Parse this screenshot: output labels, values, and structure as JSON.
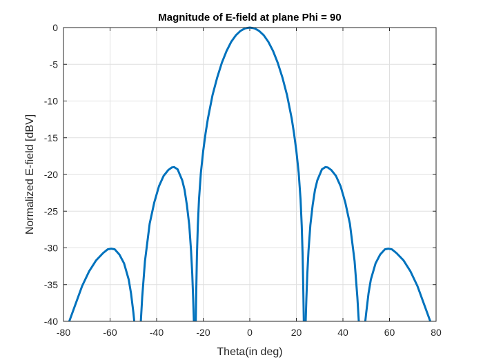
{
  "chart_data": {
    "type": "line",
    "title": "Magnitude of E-field at plane Phi = 90",
    "xlabel": "Theta(in deg)",
    "ylabel": "Normalized E-field [dBV]",
    "xlim": [
      -80,
      80
    ],
    "ylim": [
      -40,
      0
    ],
    "xticks": [
      -80,
      -60,
      -40,
      -20,
      0,
      20,
      40,
      60,
      80
    ],
    "yticks": [
      0,
      -5,
      -10,
      -15,
      -20,
      -25,
      -30,
      -35,
      -40
    ],
    "xtick_labels": [
      "-80",
      "-60",
      "-40",
      "-20",
      "0",
      "20",
      "40",
      "60",
      "80"
    ],
    "ytick_labels": [
      "0",
      "-5",
      "-10",
      "-15",
      "-20",
      "-25",
      "-30",
      "-35",
      "-40"
    ],
    "grid": true,
    "line_color": "#0072BD",
    "series": [
      {
        "x": [
          -77.5,
          -75,
          -72,
          -69,
          -66,
          -63,
          -61,
          -59.5,
          -58,
          -56,
          -54,
          -52,
          -51,
          -50,
          -49.6
        ],
        "y": [
          -40,
          -37.8,
          -35.2,
          -33.2,
          -31.7,
          -30.7,
          -30.2,
          -30.1,
          -30.2,
          -30.9,
          -32.1,
          -34.3,
          -36.2,
          -38.8,
          -40
        ]
      },
      {
        "x": [
          -46.8,
          -46.2,
          -45,
          -43,
          -41,
          -39,
          -37,
          -35,
          -33.5,
          -32.5,
          -31,
          -29,
          -28,
          -27,
          -26,
          -25.2,
          -24.7,
          -24.3,
          -24
        ],
        "y": [
          -40,
          -36.7,
          -31.8,
          -26.7,
          -23.8,
          -21.6,
          -20.2,
          -19.4,
          -19.05,
          -19.0,
          -19.3,
          -20.8,
          -22.1,
          -24.2,
          -26.9,
          -30.4,
          -33.5,
          -37,
          -40
        ]
      },
      {
        "x": [
          -23.2,
          -23,
          -22.7,
          -22.3,
          -21.8,
          -21,
          -20,
          -19,
          -18,
          -16,
          -14,
          -12,
          -10,
          -8,
          -6,
          -4,
          -2,
          0,
          2,
          4,
          6,
          8,
          10,
          12,
          14,
          16,
          18,
          19,
          20,
          21,
          21.8,
          22.3,
          22.7,
          23,
          23.2
        ],
        "y": [
          -40,
          -36,
          -31,
          -27,
          -23.4,
          -19.8,
          -16.8,
          -14.4,
          -12.4,
          -9.2,
          -6.8,
          -4.8,
          -3.2,
          -1.95,
          -1.05,
          -0.45,
          -0.1,
          0,
          -0.1,
          -0.45,
          -1.05,
          -1.95,
          -3.2,
          -4.8,
          -6.8,
          -9.2,
          -12.4,
          -14.4,
          -16.8,
          -19.8,
          -23.4,
          -27,
          -31,
          -36,
          -40
        ]
      },
      {
        "x": [
          24,
          24.3,
          24.7,
          25.2,
          26,
          27,
          28,
          29,
          31,
          32.5,
          33.5,
          35,
          37,
          39,
          41,
          43,
          45,
          46.2,
          46.8
        ],
        "y": [
          -40,
          -37,
          -33.5,
          -30.4,
          -26.9,
          -24.2,
          -22.1,
          -20.8,
          -19.3,
          -19.0,
          -19.05,
          -19.4,
          -20.2,
          -21.6,
          -23.8,
          -26.7,
          -31.8,
          -36.7,
          -40
        ]
      },
      {
        "x": [
          49.6,
          50,
          51,
          52,
          54,
          56,
          58,
          59.5,
          61,
          63,
          66,
          69,
          72,
          75,
          77.5
        ],
        "y": [
          -40,
          -38.8,
          -36.2,
          -34.3,
          -32.1,
          -30.9,
          -30.2,
          -30.1,
          -30.2,
          -30.7,
          -31.7,
          -33.2,
          -35.2,
          -37.8,
          -40
        ]
      }
    ]
  }
}
